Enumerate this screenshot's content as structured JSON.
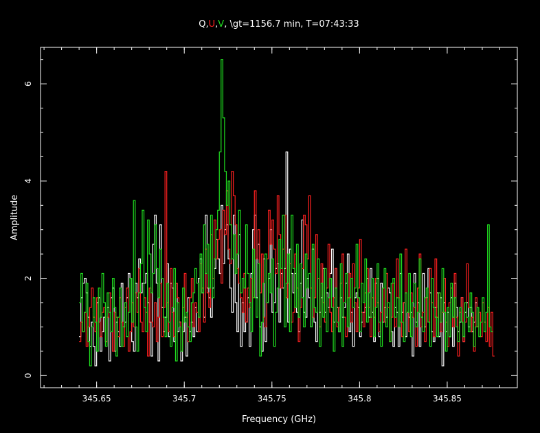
{
  "chart_data": {
    "type": "line",
    "title_segments": [
      {
        "text": "Q,",
        "color": "#ffffff"
      },
      {
        "text": "U",
        "color": "#ff2020"
      },
      {
        "text": ",",
        "color": "#ffffff"
      },
      {
        "text": "V",
        "color": "#20e020"
      },
      {
        "text": ", \\gt=1156.7 min, T=07:43:33",
        "color": "#ffffff"
      }
    ],
    "xlabel": "Frequency (GHz)",
    "ylabel": "Amplitude",
    "xlim": [
      345.618,
      345.89
    ],
    "ylim": [
      -0.25,
      6.75
    ],
    "xticks": [
      345.65,
      345.7,
      345.75,
      345.8,
      345.85
    ],
    "xtick_labels": [
      "345.65",
      "345.7",
      "345.75",
      "345.8",
      "345.85"
    ],
    "yticks": [
      0,
      2,
      4,
      6
    ],
    "ytick_labels": [
      "0",
      "2",
      "4",
      "6"
    ],
    "step_style": "histogram",
    "x_start": 345.64,
    "x_step": 0.001,
    "series": [
      {
        "name": "Q",
        "color": "#ffffff",
        "values": [
          0.8,
          1.6,
          1.9,
          2.0,
          1.7,
          1.2,
          0.6,
          1.1,
          0.6,
          0.2,
          1.5,
          1.6,
          0.5,
          0.9,
          1.2,
          0.7,
          1.4,
          0.3,
          1.6,
          1.8,
          0.5,
          1.1,
          0.9,
          0.6,
          1.9,
          1.0,
          1.1,
          1.6,
          2.1,
          2.0,
          0.7,
          0.5,
          1.9,
          1.6,
          2.4,
          1.7,
          1.9,
          1.9,
          2.1,
          1.5,
          1.1,
          0.4,
          2.7,
          3.3,
          1.9,
          0.3,
          3.1,
          1.4,
          0.9,
          1.2,
          2.3,
          0.8,
          1.9,
          1.8,
          0.7,
          1.9,
          0.9,
          1.1,
          0.3,
          0.9,
          1.2,
          0.4,
          1.6,
          0.9,
          1.1,
          0.8,
          1.4,
          0.9,
          2.0,
          2.4,
          1.7,
          1.2,
          3.3,
          1.8,
          1.6,
          1.2,
          1.8,
          2.2,
          2.8,
          2.4,
          2.1,
          3.5,
          2.3,
          3.0,
          3.1,
          2.4,
          1.8,
          1.3,
          3.3,
          1.5,
          0.9,
          2.9,
          0.6,
          1.5,
          0.9,
          1.1,
          1.6,
          0.6,
          2.1,
          3.0,
          3.3,
          1.6,
          2.7,
          1.0,
          0.5,
          2.4,
          0.7,
          1.5,
          2.0,
          3.0,
          1.3,
          1.5,
          2.2,
          2.3,
          1.1,
          2.1,
          1.8,
          2.2,
          4.6,
          1.1,
          2.6,
          2.1,
          1.7,
          2.1,
          1.3,
          0.9,
          1.9,
          3.2,
          1.3,
          1.2,
          2.0,
          1.6,
          1.0,
          2.6,
          1.1,
          0.7,
          2.0,
          1.3,
          1.6,
          2.2,
          1.3,
          1.7,
          1.4,
          2.1,
          2.6,
          1.1,
          2.2,
          1.4,
          0.9,
          1.6,
          1.2,
          1.4,
          1.9,
          2.5,
          0.9,
          1.3,
          0.6,
          1.6,
          1.7,
          1.4,
          0.8,
          1.1,
          1.3,
          1.4,
          2.0,
          1.2,
          2.2,
          1.3,
          0.7,
          1.9,
          2.0,
          0.8,
          1.9,
          1.1,
          1.4,
          1.2,
          1.8,
          1.7,
          0.9,
          0.6,
          1.4,
          1.3,
          0.6,
          2.1,
          1.3,
          1.5,
          0.8,
          1.3,
          1.2,
          1.3,
          0.4,
          2.1,
          1.1,
          1.5,
          0.6,
          1.2,
          2.1,
          1.0,
          1.6,
          2.2,
          1.7,
          0.9,
          0.7,
          1.4,
          1.7,
          0.8,
          1.6,
          0.2,
          1.5,
          0.9,
          1.3,
          0.8,
          1.6,
          0.6,
          1.9,
          1.4,
          0.9,
          1.1,
          1.6,
          0.7,
          1.3,
          1.5,
          1.0,
          1.4,
          0.9,
          1.1,
          1.5,
          1.0
        ]
      },
      {
        "name": "U",
        "color": "#ff2020",
        "values": [
          0.7,
          1.1,
          0.9,
          1.3,
          0.6,
          1.0,
          1.4,
          1.8,
          1.2,
          0.9,
          1.6,
          1.1,
          0.8,
          1.3,
          1.4,
          0.7,
          1.2,
          1.7,
          0.9,
          0.5,
          1.3,
          1.2,
          0.8,
          1.6,
          1.1,
          0.6,
          1.4,
          1.8,
          0.5,
          0.9,
          1.5,
          1.0,
          1.7,
          1.3,
          2.2,
          1.1,
          0.9,
          1.6,
          1.3,
          0.4,
          1.8,
          1.1,
          1.0,
          1.5,
          0.7,
          1.2,
          1.9,
          0.8,
          1.4,
          4.2,
          1.5,
          0.9,
          2.2,
          1.3,
          0.8,
          1.9,
          1.6,
          1.1,
          0.5,
          1.4,
          2.1,
          1.2,
          0.7,
          1.6,
          2.0,
          1.0,
          1.5,
          1.3,
          0.9,
          2.3,
          1.8,
          1.1,
          2.6,
          1.7,
          1.4,
          2.9,
          2.0,
          3.2,
          2.4,
          2.8,
          3.0,
          1.9,
          3.4,
          2.9,
          3.8,
          2.6,
          2.3,
          4.2,
          3.7,
          3.1,
          2.2,
          1.9,
          1.6,
          1.3,
          2.1,
          1.1,
          1.8,
          1.4,
          2.0,
          1.6,
          3.8,
          2.4,
          3.0,
          1.7,
          2.5,
          1.2,
          1.0,
          2.4,
          3.4,
          2.7,
          3.2,
          2.6,
          2.1,
          3.7,
          2.9,
          1.8,
          2.6,
          3.3,
          1.6,
          1.9,
          2.3,
          1.1,
          1.3,
          2.5,
          1.8,
          0.7,
          1.4,
          2.2,
          3.3,
          3.1,
          2.4,
          3.7,
          1.8,
          1.2,
          1.6,
          2.9,
          2.0,
          1.0,
          2.3,
          1.5,
          1.1,
          1.8,
          2.7,
          1.3,
          0.9,
          1.6,
          2.2,
          1.0,
          1.4,
          1.9,
          2.5,
          1.2,
          0.8,
          1.6,
          2.1,
          1.1,
          2.3,
          1.5,
          0.9,
          1.8,
          2.8,
          1.3,
          1.0,
          1.7,
          2.2,
          1.4,
          0.8,
          1.6,
          1.2,
          2.0,
          1.5,
          0.9,
          1.3,
          1.8,
          1.1,
          2.1,
          1.4,
          0.7,
          1.2,
          1.9,
          1.0,
          2.4,
          1.6,
          1.1,
          0.8,
          1.5,
          2.6,
          1.3,
          0.9,
          1.7,
          1.2,
          1.4,
          0.6,
          1.8,
          2.5,
          1.0,
          1.3,
          0.7,
          1.6,
          1.1,
          2.2,
          1.5,
          0.8,
          2.4,
          1.2,
          1.7,
          0.9,
          1.3,
          2.0,
          1.1,
          0.6,
          1.5,
          1.8,
          1.0,
          2.1,
          1.2,
          0.4,
          1.3,
          1.6,
          0.7,
          1.1,
          2.3,
          1.4,
          0.9,
          1.2,
          0.5,
          1.6,
          1.0,
          1.3,
          0.8,
          1.5,
          1.1,
          0.7,
          1.4,
          0.6,
          1.3,
          0.4
        ]
      },
      {
        "name": "V",
        "color": "#20e020",
        "values": [
          1.5,
          2.1,
          0.9,
          1.3,
          1.9,
          0.7,
          0.2,
          1.0,
          1.6,
          1.1,
          0.5,
          1.8,
          1.2,
          2.1,
          1.5,
          0.6,
          1.7,
          1.3,
          0.9,
          2.0,
          1.4,
          0.4,
          1.2,
          1.8,
          0.6,
          1.0,
          1.5,
          0.8,
          1.3,
          2.0,
          1.1,
          3.6,
          1.0,
          0.5,
          1.7,
          2.3,
          3.4,
          1.4,
          0.9,
          3.2,
          2.5,
          1.7,
          2.1,
          3.1,
          2.2,
          1.6,
          2.6,
          2.0,
          1.2,
          0.8,
          1.9,
          1.1,
          0.6,
          1.4,
          2.2,
          0.3,
          1.5,
          1.0,
          0.5,
          1.8,
          1.1,
          1.3,
          1.0,
          0.7,
          1.5,
          1.7,
          2.2,
          1.9,
          1.2,
          2.5,
          1.7,
          3.1,
          2.1,
          2.7,
          1.8,
          3.3,
          1.6,
          2.4,
          3.0,
          3.4,
          4.6,
          6.5,
          5.3,
          4.2,
          3.5,
          4.0,
          3.1,
          2.4,
          2.9,
          2.1,
          2.5,
          3.4,
          1.7,
          2.0,
          1.8,
          3.1,
          2.1,
          1.5,
          0.9,
          2.6,
          1.6,
          1.2,
          2.3,
          0.4,
          1.1,
          1.9,
          2.5,
          1.5,
          2.1,
          1.7,
          2.4,
          0.6,
          1.3,
          1.8,
          2.8,
          2.2,
          3.3,
          1.0,
          1.9,
          2.5,
          0.9,
          3.3,
          2.2,
          1.4,
          2.7,
          1.2,
          2.3,
          1.6,
          1.0,
          2.5,
          1.8,
          2.1,
          1.0,
          2.7,
          1.4,
          1.3,
          2.4,
          0.6,
          1.9,
          1.2,
          2.2,
          0.9,
          1.6,
          2.0,
          1.4,
          0.5,
          1.8,
          1.1,
          0.9,
          2.3,
          0.6,
          1.5,
          2.1,
          1.0,
          1.6,
          2.0,
          1.4,
          1.8,
          2.7,
          1.6,
          0.9,
          1.9,
          1.5,
          2.4,
          1.1,
          1.7,
          1.2,
          2.0,
          0.8,
          1.4,
          2.3,
          1.1,
          0.6,
          1.8,
          2.2,
          1.0,
          1.5,
          0.7,
          1.9,
          2.0,
          1.2,
          1.6,
          1.0,
          2.5,
          1.1,
          0.7,
          1.7,
          1.3,
          2.1,
          0.8,
          1.5,
          1.9,
          1.0,
          1.3,
          2.4,
          1.2,
          0.9,
          1.6,
          1.8,
          1.1,
          0.6,
          2.0,
          1.4,
          1.2,
          0.8,
          1.7,
          1.1,
          2.2,
          1.3,
          0.5,
          1.4,
          0.8,
          1.9,
          1.2,
          1.6,
          1.0,
          0.7,
          1.4,
          1.1,
          0.8,
          1.5,
          1.2,
          0.9,
          1.7,
          1.3,
          0.6,
          1.0,
          1.4,
          0.8,
          1.1,
          1.6,
          0.9,
          1.3,
          3.1,
          1.0,
          0.9
        ]
      }
    ]
  }
}
